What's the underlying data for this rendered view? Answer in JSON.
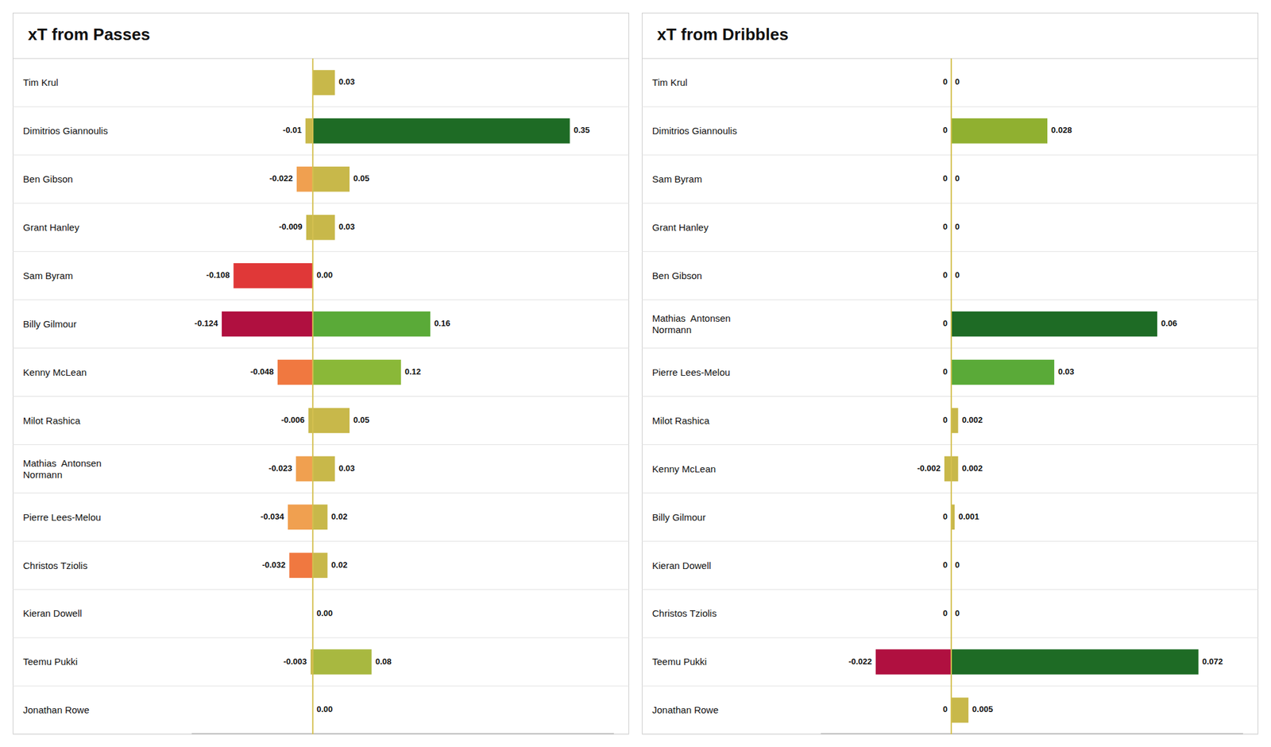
{
  "chart_data": [
    {
      "type": "bar",
      "orientation": "horizontal",
      "title": "xT from Passes",
      "categories": [
        "Tim Krul",
        "Dimitrios Giannoulis",
        "Ben Gibson",
        "Grant Hanley",
        "Sam Byram",
        "Billy Gilmour",
        "Kenny McLean",
        "Milot Rashica",
        "Mathias  Antonsen\nNormann",
        "Pierre Lees-Melou",
        "Christos Tziolis",
        "Kieran Dowell",
        "Teemu Pukki",
        "Jonathan Rowe"
      ],
      "series": [
        {
          "values": [
            0,
            -0.01,
            -0.022,
            -0.009,
            -0.108,
            -0.124,
            -0.048,
            -0.006,
            -0.023,
            -0.034,
            -0.032,
            0,
            -0.003,
            0
          ],
          "colors": [
            "#c8b84a",
            "#c8b84a",
            "#f0a050",
            "#c8b84a",
            "#e03838",
            "#b01040",
            "#f07840",
            "#c8b84a",
            "#f0a050",
            "#f0a050",
            "#f07840",
            "#c8b84a",
            "#c8b84a",
            "#c8b84a"
          ],
          "value_labels": [
            null,
            "-0.01",
            "-0.022",
            "-0.009",
            "-0.108",
            "-0.124",
            "-0.048",
            "-0.006",
            "-0.023",
            "-0.034",
            "-0.032",
            null,
            "-0.003",
            null
          ]
        },
        {
          "values": [
            0.03,
            0.35,
            0.05,
            0.03,
            0,
            0.16,
            0.12,
            0.05,
            0.03,
            0.02,
            0.02,
            0,
            0.08,
            0
          ],
          "colors": [
            "#c8b84a",
            "#1e6b25",
            "#c8b84a",
            "#c8b84a",
            "#c8b84a",
            "#5aaa38",
            "#8ab838",
            "#c8b84a",
            "#c8b84a",
            "#c8b84a",
            "#c8b84a",
            "#c8b84a",
            "#a8b840",
            "#c8b84a"
          ],
          "value_labels": [
            "0.03",
            "0.35",
            "0.05",
            "0.03",
            "0.00",
            "0.16",
            "0.12",
            "0.05",
            "0.03",
            "0.02",
            "0.02",
            "0.00",
            "0.08",
            "0.00"
          ]
        }
      ],
      "xlim": [
        -0.165,
        0.41
      ],
      "data_labels": true,
      "tick_labels": false,
      "grid": false
    },
    {
      "type": "bar",
      "orientation": "horizontal",
      "title": "xT from Dribbles",
      "categories": [
        "Tim Krul",
        "Dimitrios Giannoulis",
        "Sam Byram",
        "Grant Hanley",
        "Ben Gibson",
        "Mathias  Antonsen\nNormann",
        "Pierre Lees-Melou",
        "Milot Rashica",
        "Kenny McLean",
        "Billy Gilmour",
        "Kieran Dowell",
        "Christos Tziolis",
        "Teemu Pukki",
        "Jonathan Rowe"
      ],
      "series": [
        {
          "values": [
            0,
            0,
            0,
            0,
            0,
            0,
            0,
            0,
            -0.002,
            0,
            0,
            0,
            -0.022,
            0
          ],
          "colors": [
            "#c8b84a",
            "#c8b84a",
            "#c8b84a",
            "#c8b84a",
            "#c8b84a",
            "#c8b84a",
            "#c8b84a",
            "#c8b84a",
            "#c8b84a",
            "#c8b84a",
            "#c8b84a",
            "#c8b84a",
            "#b01040",
            "#c8b84a"
          ],
          "value_labels": [
            "0",
            "0",
            "0",
            "0",
            "0",
            "0",
            "0",
            "0",
            "-0.002",
            "0",
            "0",
            "0",
            "-0.022",
            "0"
          ]
        },
        {
          "values": [
            0,
            0.028,
            0,
            0,
            0,
            0.06,
            0.03,
            0.002,
            0.002,
            0.001,
            0,
            0,
            0.072,
            0.005
          ],
          "colors": [
            "#c8b84a",
            "#90b030",
            "#c8b84a",
            "#c8b84a",
            "#c8b84a",
            "#1e6b25",
            "#5aaa38",
            "#c8b84a",
            "#c8b84a",
            "#c8b84a",
            "#c8b84a",
            "#c8b84a",
            "#1e6b25",
            "#c8b84a"
          ],
          "value_labels": [
            "0",
            "0.028",
            "0",
            "0",
            "0",
            "0.06",
            "0.03",
            "0.002",
            "0.002",
            "0.001",
            "0",
            "0",
            "0.072",
            "0.005"
          ]
        }
      ],
      "xlim": [
        -0.038,
        0.085
      ],
      "data_labels": true,
      "tick_labels": false,
      "grid": false
    }
  ]
}
